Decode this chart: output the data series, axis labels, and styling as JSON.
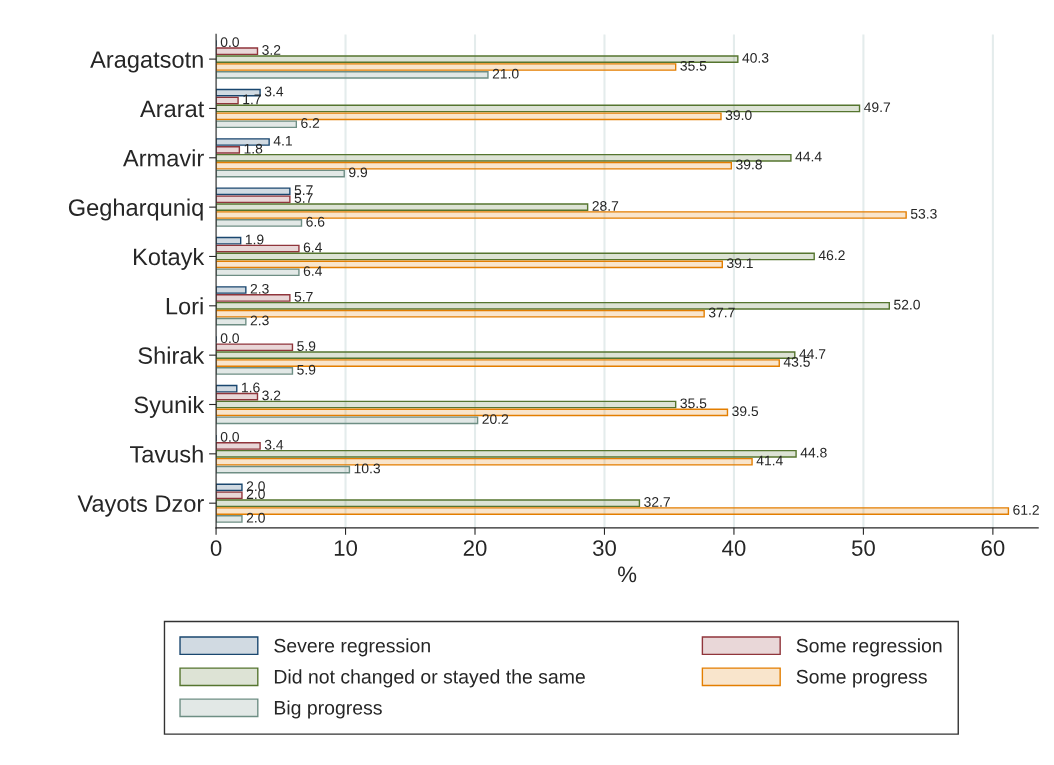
{
  "chart_data": {
    "type": "bar",
    "orientation": "horizontal",
    "xlabel": "%",
    "categories": [
      "Aragatsotn",
      "Ararat",
      "Armavir",
      "Gegharquniq",
      "Kotayk",
      "Lori",
      "Shirak",
      "Syunik",
      "Tavush",
      "Vayots Dzor"
    ],
    "series": [
      {
        "name": "Severe regression",
        "color": "#1a476f",
        "values": [
          0.0,
          3.4,
          4.1,
          5.7,
          1.9,
          2.3,
          0.0,
          1.6,
          0.0,
          2.0
        ],
        "value_labels": [
          "0.0",
          "3.4",
          "4.1",
          "5.7",
          "1.9",
          "2.3",
          "0.0",
          "1.6",
          "0.0",
          "2.0"
        ]
      },
      {
        "name": "Some regression",
        "color": "#90353b",
        "values": [
          3.2,
          1.7,
          1.8,
          5.7,
          6.4,
          5.7,
          5.9,
          3.2,
          3.4,
          2.0
        ],
        "value_labels": [
          "3.2",
          "1.7",
          "1.8",
          "5.7",
          "6.4",
          "5.7",
          "5.9",
          "3.2",
          "3.4",
          "2.0"
        ]
      },
      {
        "name": "Did not changed or stayed the same",
        "color": "#55752f",
        "values": [
          40.3,
          49.7,
          44.4,
          28.7,
          46.2,
          52.0,
          44.7,
          35.5,
          44.8,
          32.7
        ],
        "value_labels": [
          "40.3",
          "49.7",
          "44.4",
          "28.7",
          "46.2",
          "52.0",
          "44.7",
          "35.5",
          "44.8",
          "32.7"
        ]
      },
      {
        "name": "Some progress",
        "color": "#e37e00",
        "values": [
          35.5,
          39.0,
          39.8,
          53.3,
          39.1,
          37.7,
          43.5,
          39.5,
          41.4,
          61.2
        ],
        "value_labels": [
          "35.5",
          "39.0",
          "39.8",
          "53.3",
          "39.1",
          "37.7",
          "43.5",
          "39.5",
          "41.4",
          "61.2"
        ]
      },
      {
        "name": "Big progress",
        "color": "#6e8e84",
        "values": [
          21.0,
          6.2,
          9.9,
          6.6,
          6.4,
          2.3,
          5.9,
          20.2,
          10.3,
          2.0
        ],
        "value_labels": [
          "21.0",
          "6.2",
          "9.9",
          "6.6",
          "6.4",
          "2.3",
          "5.9",
          "20.2",
          "10.3",
          "2.0"
        ]
      }
    ],
    "xlim": [
      0,
      63.5
    ],
    "xticks": [
      0,
      10,
      20,
      30,
      40,
      50,
      60
    ],
    "grid": "x",
    "legend": "bottom"
  }
}
